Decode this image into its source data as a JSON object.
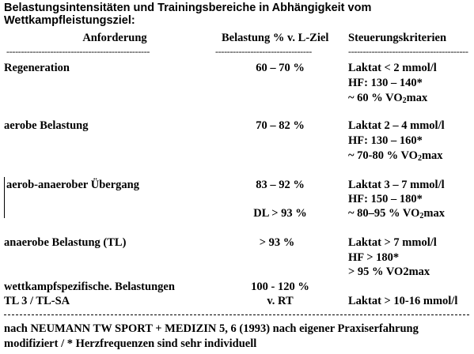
{
  "title_line1": "Belastungsintensitäten und Trainingsbereiche in Abhängigkeit vom",
  "title_line2": "Wettkampfleistungsziel:",
  "headers": {
    "anforderung": "Anforderung",
    "belastung": "Belastung % v. L-Ziel",
    "steuerung": "Steuerungskriterien"
  },
  "dashes": {
    "col1": "-------------------------------------------------",
    "col2": "---------------------------------",
    "col3": "--------------------------------------------"
  },
  "rows": [
    {
      "anforderung": "Regeneration",
      "belastung": "60 – 70 %",
      "kriterien": [
        "Laktat < 2 mmol/l",
        "HF: 130 – 140*",
        "~ 60 % VO",
        "max"
      ]
    },
    {
      "anforderung": "aerobe Belastung",
      "belastung": "70 – 82 %",
      "kriterien": [
        "Laktat 2 – 4 mmol/l",
        "HF: 130 – 160*",
        "~ 70-80 % VO",
        "max"
      ]
    },
    {
      "anforderung": "aerob-anaerober Übergang",
      "belastung": "83 – 92 %",
      "belastung2": "DL > 93 %",
      "kriterien": [
        "Laktat 3 – 7 mmol/l",
        "HF: 150 – 180*",
        "~ 80–95 % VO",
        "max"
      ]
    },
    {
      "anforderung": "anaerobe Belastung (TL)",
      "belastung": "> 93 %",
      "kriterien": [
        "Laktat > 7 mmol/l",
        "HF > 180*",
        "> 95 % VO2max"
      ]
    },
    {
      "anforderung": "wettkampfspezifische. Belastungen",
      "anforderung2": "TL 3 / TL-SA",
      "belastung": "100 - 120 %",
      "belastung2": "v. RT",
      "kriterien": [
        "Laktat > 10-16 mmol/l"
      ]
    }
  ],
  "sub2": "2",
  "footer": {
    "line1": "nach NEUMANN TW SPORT + MEDIZIN 5, 6 (1993) nach eigener Praxiserfahrung",
    "line2": "modifiziert / * Herzfrequenzen sind sehr individuell"
  }
}
